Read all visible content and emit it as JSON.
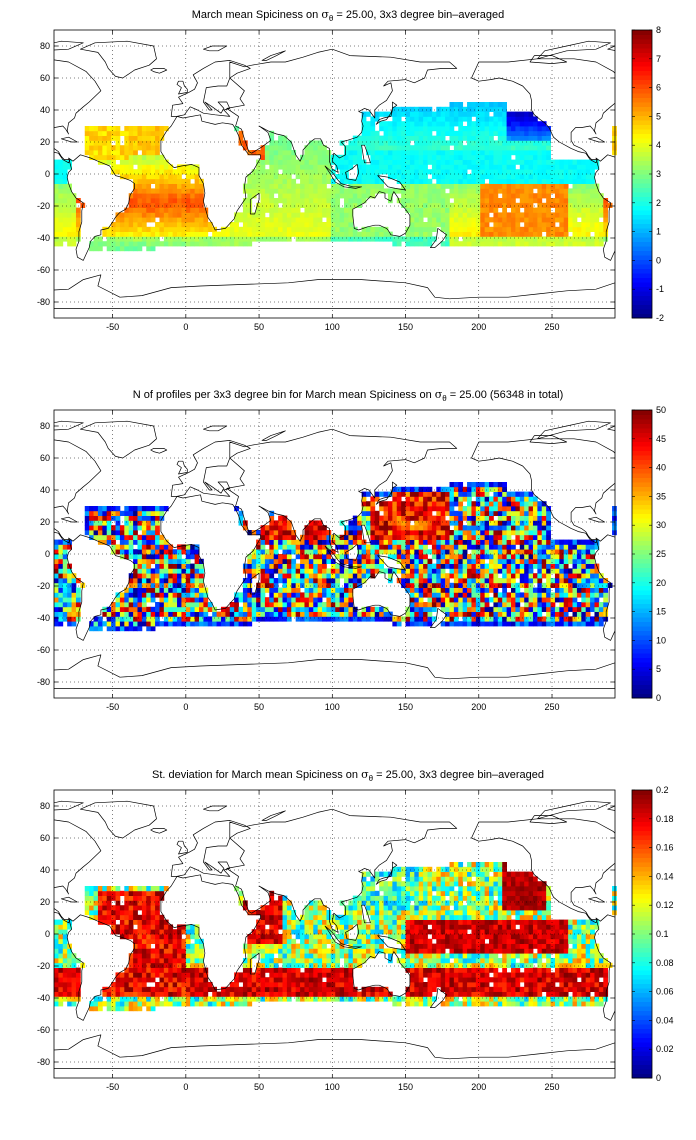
{
  "panels": [
    {
      "id": "spiciness-mean",
      "title_pre": "March mean Spiciness on ",
      "title_sigma": "σ",
      "title_sub": "θ",
      "title_post": " = 25.00, 3x3 degree bin–averaged",
      "colorbar": {
        "min": -2,
        "max": 8,
        "ticks": [
          "8",
          "7",
          "6",
          "5",
          "4",
          "3",
          "2",
          "1",
          "0",
          "-1",
          "-2"
        ]
      },
      "field": "spice"
    },
    {
      "id": "profile-count",
      "title_pre": "N of profiles per 3x3 degree bin for March mean Spiciness on ",
      "title_sigma": "σ",
      "title_sub": "θ",
      "title_post": " = 25.00 (56348 in total)",
      "colorbar": {
        "min": 0,
        "max": 50,
        "ticks": [
          "50",
          "45",
          "40",
          "35",
          "30",
          "25",
          "20",
          "15",
          "10",
          "5",
          "0"
        ]
      },
      "field": "count"
    },
    {
      "id": "spiciness-std",
      "title_pre": "St. deviation for March mean Spiciness on ",
      "title_sigma": "σ",
      "title_sub": "θ",
      "title_post": " = 25.00, 3x3 degree bin–averaged",
      "colorbar": {
        "min": 0,
        "max": 0.2,
        "ticks": [
          "0.2",
          "0.18",
          "0.16",
          "0.14",
          "0.12",
          "0.1",
          "0.08",
          "0.06",
          "0.04",
          "0.02",
          "0"
        ]
      },
      "field": "std"
    }
  ],
  "axes": {
    "x_ticks": [
      "-50",
      "0",
      "50",
      "100",
      "150",
      "200",
      "250"
    ],
    "y_ticks": [
      "80",
      "60",
      "40",
      "20",
      "0",
      "-20",
      "-40",
      "-60",
      "-80"
    ],
    "xlim": [
      -90,
      293
    ],
    "ylim": [
      -90,
      90
    ]
  },
  "colormap": "jet"
}
